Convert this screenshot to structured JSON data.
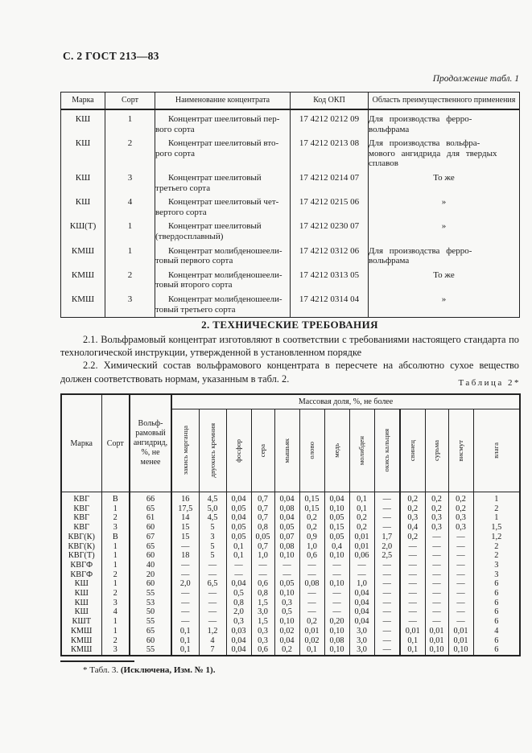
{
  "page": {
    "header": "С. 2 ГОСТ 213—83",
    "table1_caption": "Продолжение табл. 1",
    "table2_caption": "Таблица 2*"
  },
  "table1": {
    "headers": [
      "Марка",
      "Сорт",
      "Наименование концентрата",
      "Код ОКП",
      "Область преимущественного применения"
    ],
    "rows": [
      {
        "marka": "КШ",
        "sort": "1",
        "name": "Концентрат шеелитовый пер-\nвого сорта",
        "code": "17 4212 0212 09",
        "area": "Для производства ферро-\nвольфрама"
      },
      {
        "marka": "КШ",
        "sort": "2",
        "name": "Концентрат шеелитовый вто-\nрого сорта",
        "code": "17 4212 0213 08",
        "area": "Для производства вольфра-\nмового ангидрида для твердых\nсплавов"
      },
      {
        "marka": "КШ",
        "sort": "3",
        "name": "Концентрат шеелитовый\nтретьего сорта",
        "code": "17 4212 0214 07",
        "area": "То же"
      },
      {
        "marka": "КШ",
        "sort": "4",
        "name": "Концентрат шеелитовый чет-\nвертого сорта",
        "code": "17 4212 0215 06",
        "area": "»"
      },
      {
        "marka": "КШ(Т)",
        "sort": "1",
        "name": "Концентрат шеелитовый\n(твердосплавный)",
        "code": "17 4212 0230 07",
        "area": "»"
      },
      {
        "marka": "КМШ",
        "sort": "1",
        "name": "Концентрат молибденошеели-\nтовый первого сорта",
        "code": "17 4212 0312 06",
        "area": "Для производства ферро-\nвольфрама"
      },
      {
        "marka": "КМШ",
        "sort": "2",
        "name": "Концентрат молибденошеели-\nтовый второго сорта",
        "code": "17 4212 0313 05",
        "area": "То же"
      },
      {
        "marka": "КМШ",
        "sort": "3",
        "name": "Концентрат молибденошеели-\nтовый третьего сорта",
        "code": "17 4212 0314 04",
        "area": "»"
      }
    ]
  },
  "section": {
    "title": "2. ТЕХНИЧЕСКИЕ ТРЕБОВАНИЯ",
    "p21": "2.1. Вольфрамовый концентрат изготовляют в соответствии с требованиями настоящего стандарта по технологической инструкции, утвержденной в установленном порядке",
    "p22": "2.2. Химический состав вольфрамового концентрата в пересчете на абсолютно сухое вещество должен соответствовать нормам, указанным в табл. 2."
  },
  "table2": {
    "col_marka": "Марка",
    "col_sort": "Сорт",
    "col_angidrid": "Вольф-\nрамовый\nангидрид,\n%, не\nменее",
    "span_header": "Массовая доля, %, не более",
    "rotated_cols": [
      "закись марганца",
      "двуокись кремния",
      "фосфор",
      "сера",
      "мышьяк",
      "олово",
      "медь",
      "молибден",
      "окись кальция",
      "свинец",
      "сурьма",
      "висмут",
      "влага"
    ],
    "rows": [
      [
        "КВГ",
        "В",
        "66",
        "16",
        "4,5",
        "0,04",
        "0,7",
        "0,04",
        "0,15",
        "0,04",
        "0,1",
        "—",
        "0,2",
        "0,2",
        "0,2",
        "1"
      ],
      [
        "КВГ",
        "1",
        "65",
        "17,5",
        "5,0",
        "0,05",
        "0,7",
        "0,08",
        "0,15",
        "0,10",
        "0,1",
        "—",
        "0,2",
        "0,2",
        "0,2",
        "2"
      ],
      [
        "КВГ",
        "2",
        "61",
        "14",
        "4,5",
        "0,04",
        "0,7",
        "0,04",
        "0,2",
        "0,05",
        "0,2",
        "—",
        "0,3",
        "0,3",
        "0,3",
        "1"
      ],
      [
        "КВГ",
        "3",
        "60",
        "15",
        "5",
        "0,05",
        "0,8",
        "0,05",
        "0,2",
        "0,15",
        "0,2",
        "—",
        "0,4",
        "0,3",
        "0,3",
        "1,5"
      ],
      [
        "КВГ(К)",
        "В",
        "67",
        "15",
        "3",
        "0,05",
        "0,05",
        "0,07",
        "0,9",
        "0,05",
        "0,01",
        "1,7",
        "0,2",
        "—",
        "—",
        "1,2"
      ],
      [
        "КВГ(К)",
        "1",
        "65",
        "—",
        "5",
        "0,1",
        "0,7",
        "0,08",
        "1,0",
        "0,4",
        "0,01",
        "2,0",
        "—",
        "—",
        "—",
        "2"
      ],
      [
        "КВГ(Т)",
        "1",
        "60",
        "18",
        "5",
        "0,1",
        "1,0",
        "0,10",
        "0,6",
        "0,10",
        "0,06",
        "2,5",
        "—",
        "—",
        "—",
        "2"
      ],
      [
        "КВГФ",
        "1",
        "40",
        "—",
        "—",
        "—",
        "—",
        "—",
        "—",
        "—",
        "—",
        "—",
        "—",
        "—",
        "—",
        "3"
      ],
      [
        "КВГФ",
        "2",
        "20",
        "—",
        "—",
        "—",
        "—",
        "—",
        "—",
        "—",
        "—",
        "—",
        "—",
        "—",
        "—",
        "3"
      ],
      [
        "КШ",
        "1",
        "60",
        "2,0",
        "6,5",
        "0,04",
        "0,6",
        "0,05",
        "0,08",
        "0,10",
        "1,0",
        "—",
        "—",
        "—",
        "—",
        "6"
      ],
      [
        "КШ",
        "2",
        "55",
        "—",
        "—",
        "0,5",
        "0,8",
        "0,10",
        "—",
        "—",
        "0,04",
        "—",
        "—",
        "—",
        "—",
        "6"
      ],
      [
        "КШ",
        "3",
        "53",
        "—",
        "—",
        "0,8",
        "1,5",
        "0,3",
        "—",
        "—",
        "0,04",
        "—",
        "—",
        "—",
        "—",
        "6"
      ],
      [
        "КШ",
        "4",
        "50",
        "—",
        "—",
        "2,0",
        "3,0",
        "0,5",
        "—",
        "—",
        "0,04",
        "—",
        "—",
        "—",
        "—",
        "6"
      ],
      [
        "КШТ",
        "1",
        "55",
        "—",
        "—",
        "0,3",
        "1,5",
        "0,10",
        "0,2",
        "0,20",
        "0,04",
        "—",
        "—",
        "—",
        "—",
        "6"
      ],
      [
        "КМШ",
        "1",
        "65",
        "0,1",
        "1,2",
        "0,03",
        "0,3",
        "0,02",
        "0,01",
        "0,10",
        "3,0",
        "—",
        "0,01",
        "0,01",
        "0,01",
        "4"
      ],
      [
        "КМШ",
        "2",
        "60",
        "0,1",
        "4",
        "0,04",
        "0,3",
        "0,04",
        "0,02",
        "0,08",
        "3,0",
        "—",
        "0,1",
        "0,01",
        "0,01",
        "6"
      ],
      [
        "КМШ",
        "3",
        "55",
        "0,1",
        "7",
        "0,04",
        "0,6",
        "0,2",
        "0,1",
        "0,10",
        "3,0",
        "—",
        "0,1",
        "0,10",
        "0,10",
        "6"
      ]
    ]
  },
  "footnote": {
    "prefix": "* Табл. 3. ",
    "bold": "(Исключена, Изм. № 1)."
  }
}
